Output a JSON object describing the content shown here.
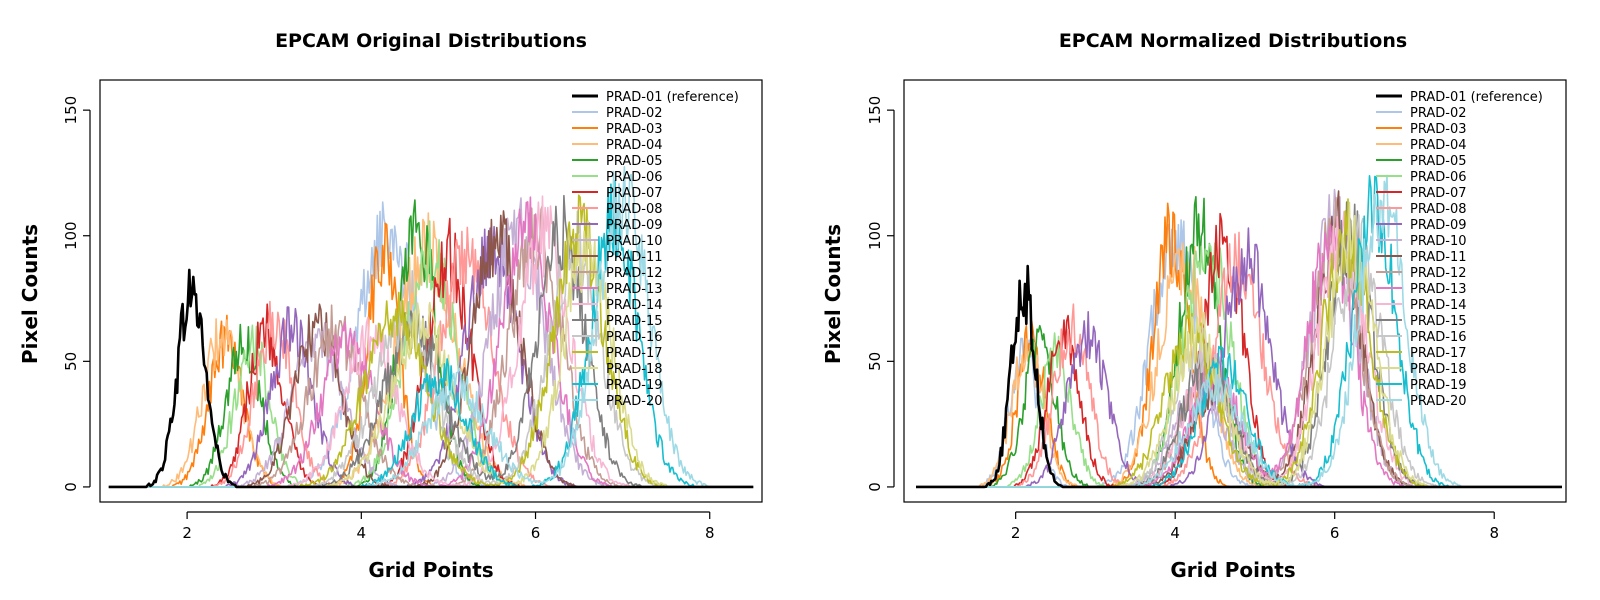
{
  "chart_data": [
    {
      "type": "line",
      "title": "EPCAM Original Distributions",
      "xlabel": "Grid Points",
      "ylabel": "Pixel Counts",
      "xlim": [
        1.0,
        8.6
      ],
      "ylim": [
        -6,
        162
      ],
      "xticks": [
        2,
        4,
        6,
        8
      ],
      "yticks": [
        0,
        50,
        100,
        150
      ],
      "legend_position": "top-right",
      "grid": false,
      "series": [
        {
          "name": "PRAD-01 (reference)",
          "color": "#000000",
          "reference": true,
          "peaks": [
            [
              2.05,
              0.16,
              78
            ]
          ]
        },
        {
          "name": "PRAD-02",
          "color": "#aec7e8",
          "peaks": [
            [
              4.3,
              0.35,
              102
            ]
          ]
        },
        {
          "name": "PRAD-03",
          "color": "#ff7f0e",
          "peaks": [
            [
              2.45,
              0.2,
              58
            ],
            [
              4.25,
              0.18,
              95
            ]
          ]
        },
        {
          "name": "PRAD-04",
          "color": "#ffbb78",
          "peaks": [
            [
              2.4,
              0.22,
              60
            ],
            [
              4.75,
              0.35,
              95
            ]
          ]
        },
        {
          "name": "PRAD-05",
          "color": "#2ca02c",
          "peaks": [
            [
              2.65,
              0.2,
              58
            ],
            [
              4.65,
              0.22,
              102
            ]
          ]
        },
        {
          "name": "PRAD-06",
          "color": "#98df8a",
          "peaks": [
            [
              2.75,
              0.2,
              58
            ],
            [
              4.8,
              0.3,
              92
            ]
          ]
        },
        {
          "name": "PRAD-07",
          "color": "#d62728",
          "peaks": [
            [
              2.9,
              0.2,
              62
            ],
            [
              5.0,
              0.25,
              92
            ]
          ]
        },
        {
          "name": "PRAD-08",
          "color": "#ff9896",
          "peaks": [
            [
              3.0,
              0.22,
              66
            ],
            [
              5.2,
              0.3,
              92
            ]
          ]
        },
        {
          "name": "PRAD-09",
          "color": "#9467bd",
          "peaks": [
            [
              3.2,
              0.24,
              62
            ],
            [
              5.5,
              0.3,
              95
            ]
          ]
        },
        {
          "name": "PRAD-10",
          "color": "#c5b0d5",
          "peaks": [
            [
              3.5,
              0.3,
              58
            ],
            [
              5.8,
              0.32,
              100
            ]
          ]
        },
        {
          "name": "PRAD-11",
          "color": "#8c564b",
          "peaks": [
            [
              3.5,
              0.26,
              64
            ],
            [
              5.55,
              0.28,
              100
            ]
          ]
        },
        {
          "name": "PRAD-12",
          "color": "#c49c94",
          "peaks": [
            [
              3.7,
              0.3,
              62
            ],
            [
              6.0,
              0.3,
              100
            ]
          ]
        },
        {
          "name": "PRAD-13",
          "color": "#e377c2",
          "peaks": [
            [
              3.85,
              0.3,
              58
            ],
            [
              5.9,
              0.3,
              100
            ]
          ]
        },
        {
          "name": "PRAD-14",
          "color": "#f7b6d2",
          "peaks": [
            [
              4.1,
              0.3,
              60
            ],
            [
              6.1,
              0.3,
              100
            ]
          ]
        },
        {
          "name": "PRAD-15",
          "color": "#7f7f7f",
          "peaks": [
            [
              4.6,
              0.35,
              62
            ],
            [
              6.3,
              0.28,
              100
            ]
          ]
        },
        {
          "name": "PRAD-16",
          "color": "#c7c7c7",
          "peaks": [
            [
              4.5,
              0.35,
              65
            ],
            [
              6.45,
              0.3,
              95
            ]
          ]
        },
        {
          "name": "PRAD-17",
          "color": "#bcbd22",
          "peaks": [
            [
              4.4,
              0.35,
              70
            ],
            [
              6.5,
              0.3,
              100
            ]
          ]
        },
        {
          "name": "PRAD-18",
          "color": "#dbdb8d",
          "peaks": [
            [
              4.7,
              0.35,
              65
            ],
            [
              6.6,
              0.28,
              95
            ]
          ]
        },
        {
          "name": "PRAD-19",
          "color": "#17becf",
          "peaks": [
            [
              4.9,
              0.3,
              45
            ],
            [
              6.9,
              0.28,
              105
            ]
          ]
        },
        {
          "name": "PRAD-20",
          "color": "#9edae5",
          "peaks": [
            [
              5.1,
              0.35,
              40
            ],
            [
              7.0,
              0.3,
              115
            ]
          ]
        }
      ]
    },
    {
      "type": "line",
      "title": "EPCAM Normalized Distributions",
      "xlabel": "Grid Points",
      "ylabel": "Pixel Counts",
      "xlim": [
        0.6,
        8.9
      ],
      "ylim": [
        -6,
        162
      ],
      "xticks": [
        2,
        4,
        6,
        8
      ],
      "yticks": [
        0,
        50,
        100,
        150
      ],
      "legend_position": "top-right",
      "grid": false,
      "series": [
        {
          "name": "PRAD-01 (reference)",
          "color": "#000000",
          "reference": true,
          "peaks": [
            [
              2.1,
              0.15,
              80
            ]
          ]
        },
        {
          "name": "PRAD-02",
          "color": "#aec7e8",
          "peaks": [
            [
              2.1,
              0.18,
              55
            ],
            [
              4.0,
              0.3,
              100
            ]
          ]
        },
        {
          "name": "PRAD-03",
          "color": "#ff7f0e",
          "peaks": [
            [
              2.2,
              0.18,
              58
            ],
            [
              3.95,
              0.22,
              100
            ]
          ]
        },
        {
          "name": "PRAD-04",
          "color": "#ffbb78",
          "peaks": [
            [
              2.15,
              0.2,
              55
            ],
            [
              4.1,
              0.3,
              92
            ]
          ]
        },
        {
          "name": "PRAD-05",
          "color": "#2ca02c",
          "peaks": [
            [
              2.3,
              0.2,
              55
            ],
            [
              4.3,
              0.25,
              102
            ]
          ]
        },
        {
          "name": "PRAD-06",
          "color": "#98df8a",
          "peaks": [
            [
              2.5,
              0.2,
              52
            ],
            [
              4.4,
              0.3,
              95
            ]
          ]
        },
        {
          "name": "PRAD-07",
          "color": "#d62728",
          "peaks": [
            [
              2.6,
              0.2,
              62
            ],
            [
              4.6,
              0.25,
              98
            ]
          ]
        },
        {
          "name": "PRAD-08",
          "color": "#ff9896",
          "peaks": [
            [
              2.7,
              0.22,
              65
            ],
            [
              4.8,
              0.3,
              90
            ]
          ]
        },
        {
          "name": "PRAD-09",
          "color": "#9467bd",
          "peaks": [
            [
              2.9,
              0.25,
              60
            ],
            [
              4.9,
              0.3,
              92
            ]
          ]
        },
        {
          "name": "PRAD-10",
          "color": "#c5b0d5",
          "peaks": [
            [
              4.3,
              0.3,
              40
            ],
            [
              6.0,
              0.3,
              105
            ]
          ]
        },
        {
          "name": "PRAD-11",
          "color": "#8c564b",
          "peaks": [
            [
              4.5,
              0.3,
              40
            ],
            [
              6.05,
              0.28,
              105
            ]
          ]
        },
        {
          "name": "PRAD-12",
          "color": "#c49c94",
          "peaks": [
            [
              4.4,
              0.3,
              45
            ],
            [
              6.0,
              0.3,
              100
            ]
          ]
        },
        {
          "name": "PRAD-13",
          "color": "#e377c2",
          "peaks": [
            [
              4.5,
              0.3,
              45
            ],
            [
              5.95,
              0.28,
              100
            ]
          ]
        },
        {
          "name": "PRAD-14",
          "color": "#f7b6d2",
          "peaks": [
            [
              4.4,
              0.3,
              48
            ],
            [
              6.1,
              0.3,
              100
            ]
          ]
        },
        {
          "name": "PRAD-15",
          "color": "#7f7f7f",
          "peaks": [
            [
              4.4,
              0.3,
              50
            ],
            [
              6.2,
              0.28,
              100
            ]
          ]
        },
        {
          "name": "PRAD-16",
          "color": "#c7c7c7",
          "peaks": [
            [
              4.3,
              0.3,
              55
            ],
            [
              6.3,
              0.3,
              95
            ]
          ]
        },
        {
          "name": "PRAD-17",
          "color": "#bcbd22",
          "peaks": [
            [
              4.2,
              0.32,
              62
            ],
            [
              6.15,
              0.3,
              100
            ]
          ]
        },
        {
          "name": "PRAD-18",
          "color": "#dbdb8d",
          "peaks": [
            [
              4.3,
              0.32,
              60
            ],
            [
              6.2,
              0.3,
              98
            ]
          ]
        },
        {
          "name": "PRAD-19",
          "color": "#17becf",
          "peaks": [
            [
              4.6,
              0.3,
              48
            ],
            [
              6.5,
              0.28,
              110
            ]
          ]
        },
        {
          "name": "PRAD-20",
          "color": "#9edae5",
          "peaks": [
            [
              4.5,
              0.35,
              40
            ],
            [
              6.6,
              0.3,
              115
            ]
          ]
        }
      ]
    }
  ]
}
